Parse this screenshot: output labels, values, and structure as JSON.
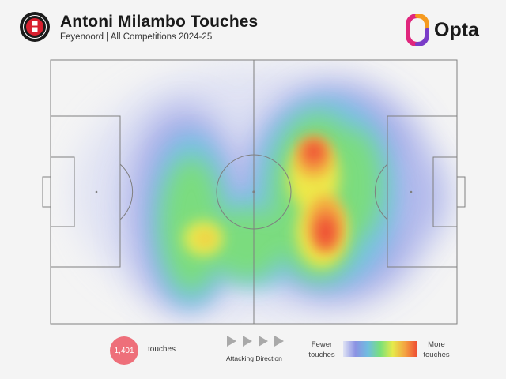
{
  "header": {
    "title": "Antoni Milambo Touches",
    "subtitle": "Feyenoord | All Competitions 2024-25",
    "club_badge_icon": "feyenoord-badge-icon",
    "brand": {
      "text": "Opta",
      "icon": "opta-logo-icon",
      "colors": [
        "#f59a1f",
        "#e0267d",
        "#7a3cc8"
      ]
    }
  },
  "heatmap": {
    "pitch_line_color": "#7f7f7f",
    "attacking_direction": "left-to-right",
    "color_scale": [
      "#dfe3f4",
      "#8b92e3",
      "#6fbde0",
      "#79e07a",
      "#e6ea4b",
      "#f4a341",
      "#ee4a33"
    ]
  },
  "footer": {
    "touch_count": "1,401",
    "touch_label": "touches",
    "touch_badge_color": "#ee6f7a",
    "direction_icon": "play-arrows-icon",
    "direction_label": "Attacking Direction",
    "legend_low": "Fewer touches",
    "legend_high": "More touches"
  }
}
